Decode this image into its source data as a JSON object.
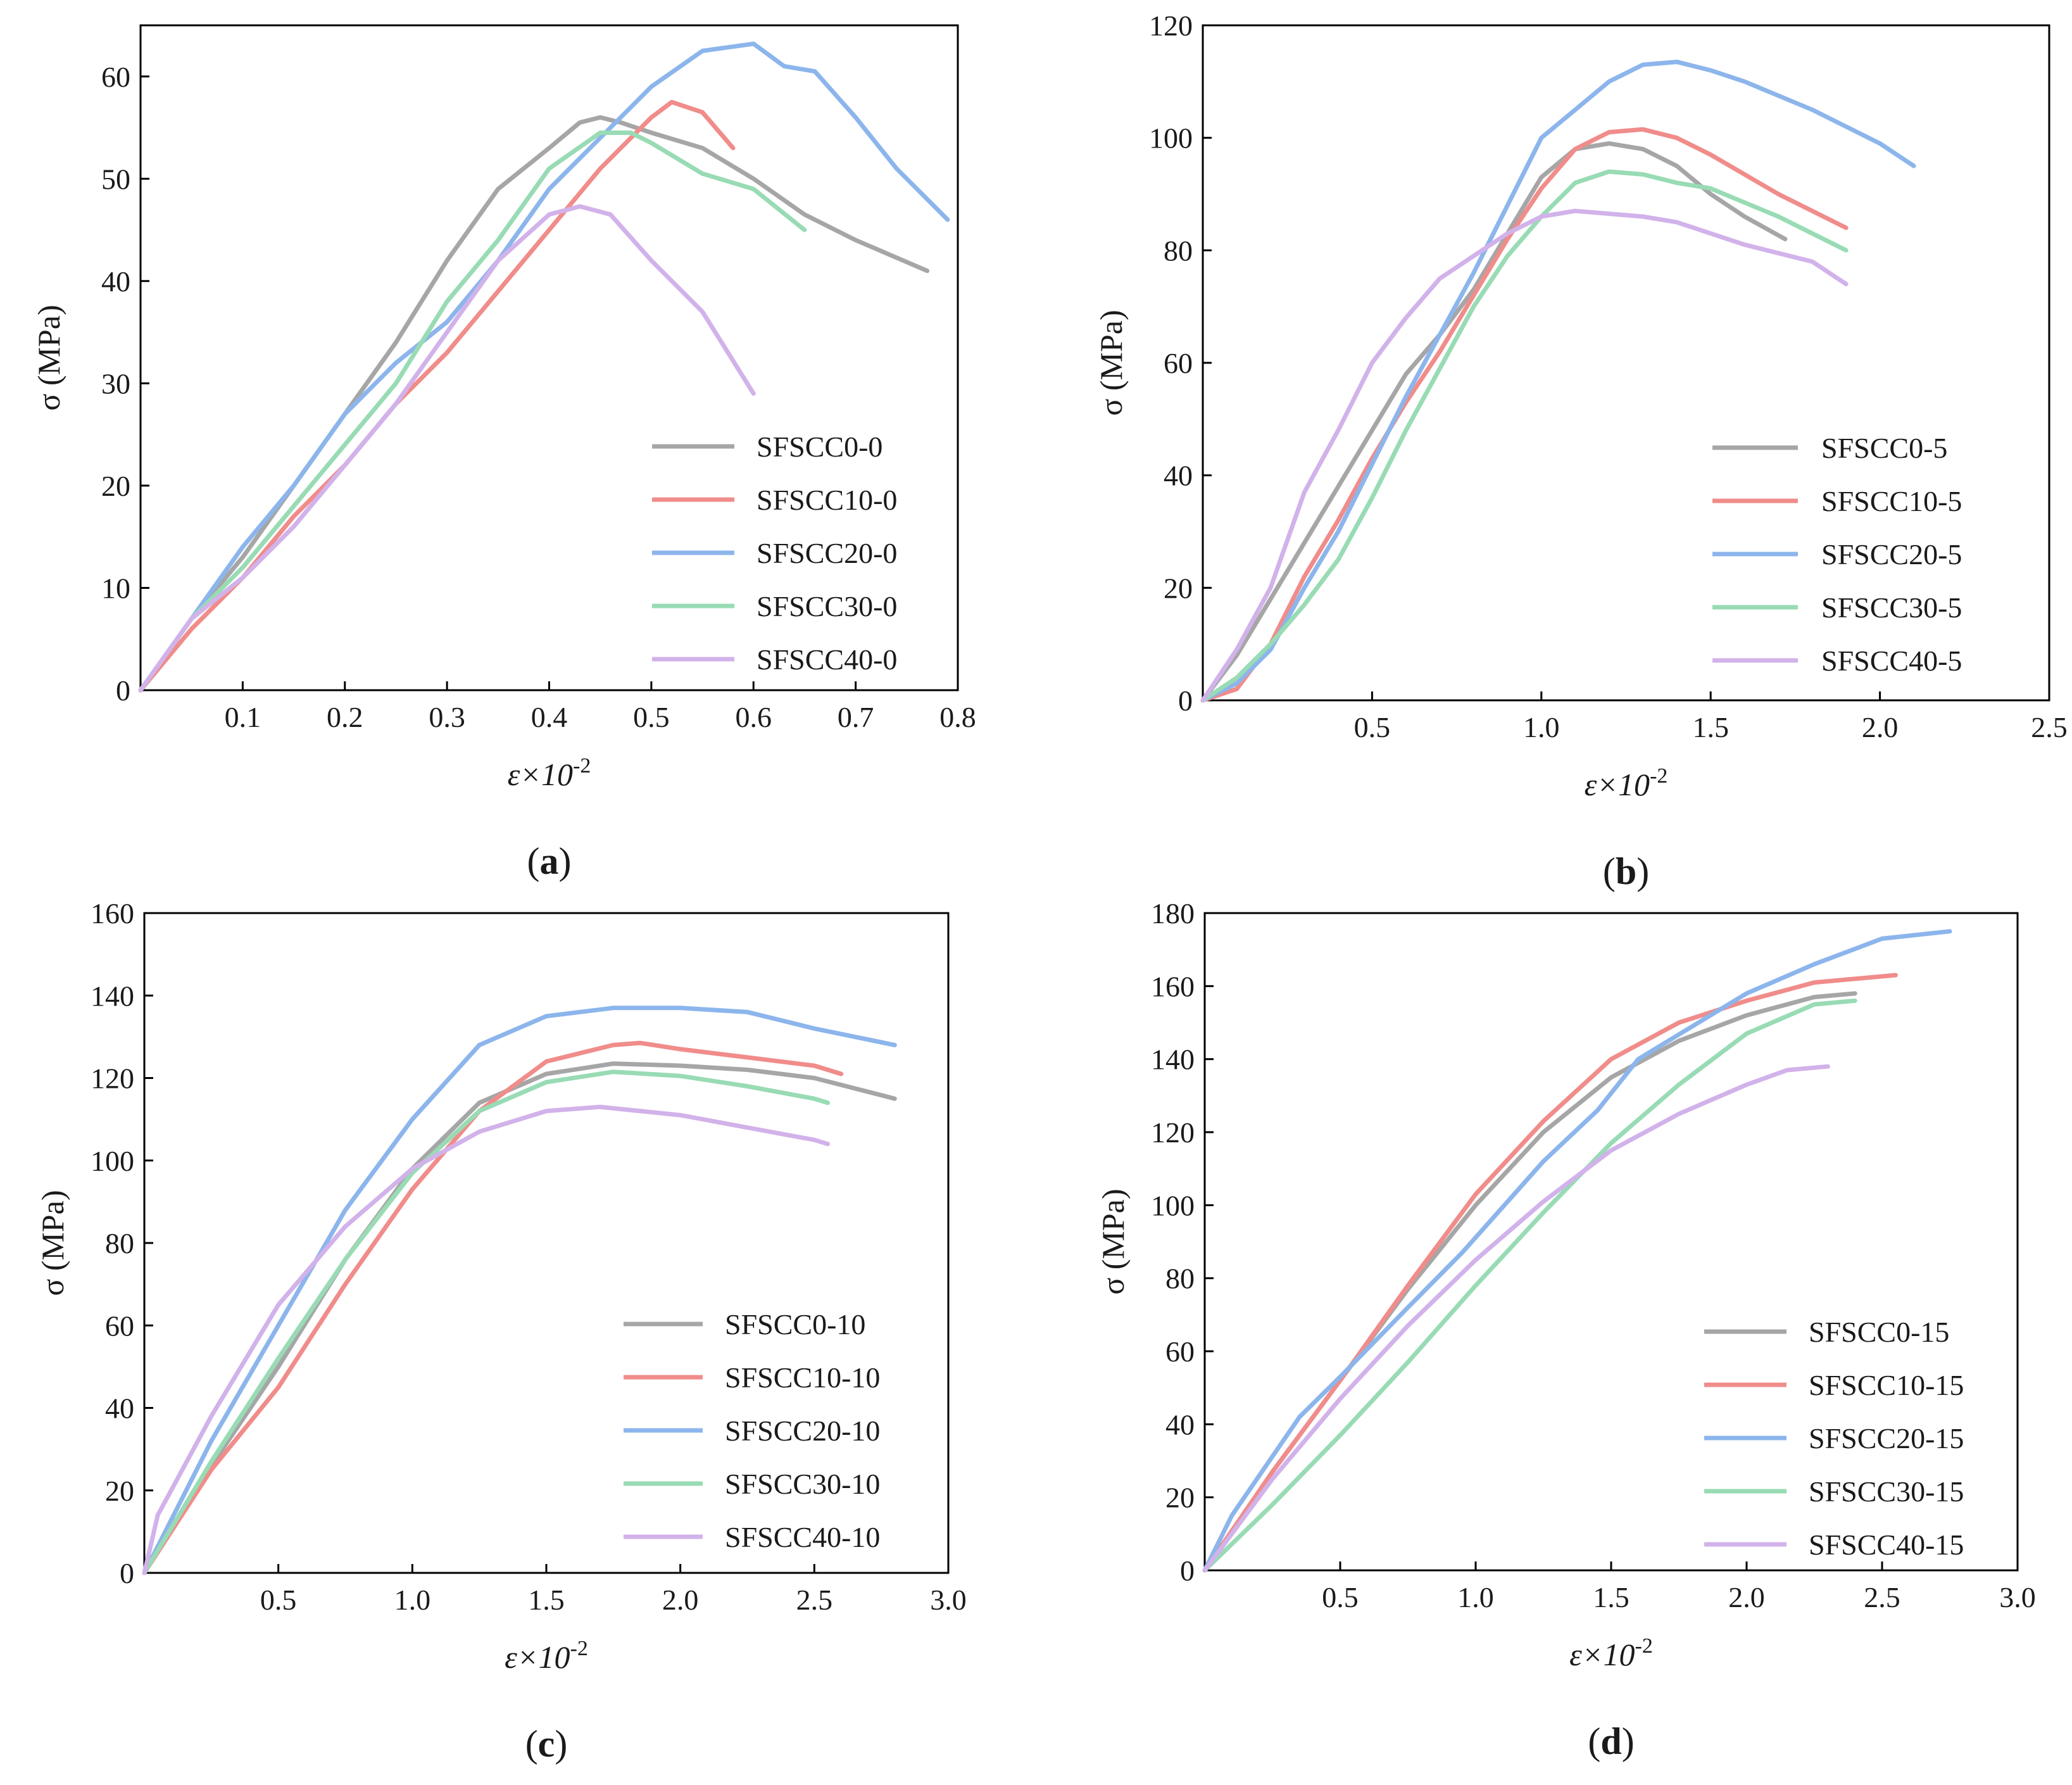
{
  "chart_data": [
    {
      "type": "line",
      "panel_label": "a",
      "xlabel": "ε×10",
      "xlabel_exp": "-2",
      "ylabel": "σ (MPa)",
      "xlim": [
        0,
        0.8
      ],
      "ylim": [
        0,
        65
      ],
      "xticks": [
        0.1,
        0.2,
        0.3,
        0.4,
        0.5,
        0.6,
        0.7,
        0.8
      ],
      "xtick_labels": [
        "0.1",
        "0.2",
        "0.3",
        "0.4",
        "0.5",
        "0.6",
        "0.7",
        "0.8"
      ],
      "yticks": [
        0,
        10,
        20,
        30,
        40,
        50,
        60
      ],
      "ytick_labels": [
        "0",
        "10",
        "20",
        "30",
        "40",
        "50",
        "60"
      ],
      "legend_position": "bottom-right",
      "series": [
        {
          "name": "SFSCC0-0",
          "color": "#a6a6a6",
          "x": [
            0,
            0.05,
            0.1,
            0.15,
            0.2,
            0.25,
            0.3,
            0.35,
            0.4,
            0.43,
            0.45,
            0.47,
            0.5,
            0.55,
            0.6,
            0.65,
            0.7,
            0.77
          ],
          "y": [
            0,
            7,
            13,
            20,
            27,
            34,
            42,
            49,
            53,
            55.5,
            56,
            55.5,
            54.5,
            53,
            50,
            46.5,
            44,
            41
          ]
        },
        {
          "name": "SFSCC10-0",
          "color": "#f08c8a",
          "x": [
            0,
            0.05,
            0.1,
            0.15,
            0.2,
            0.25,
            0.3,
            0.35,
            0.4,
            0.45,
            0.5,
            0.52,
            0.55,
            0.58
          ],
          "y": [
            0,
            6,
            11,
            17,
            22,
            28,
            33,
            39,
            45,
            51,
            56,
            57.5,
            56.5,
            53
          ]
        },
        {
          "name": "SFSCC20-0",
          "color": "#8cb5ec",
          "x": [
            0,
            0.05,
            0.1,
            0.15,
            0.2,
            0.25,
            0.3,
            0.35,
            0.4,
            0.45,
            0.5,
            0.55,
            0.6,
            0.63,
            0.66,
            0.7,
            0.74,
            0.79
          ],
          "y": [
            0,
            7,
            14,
            20,
            27,
            32,
            36,
            42,
            49,
            54,
            59,
            62.5,
            63.2,
            61,
            60.5,
            56,
            51,
            46
          ]
        },
        {
          "name": "SFSCC30-0",
          "color": "#98dbb4",
          "x": [
            0,
            0.05,
            0.1,
            0.15,
            0.2,
            0.25,
            0.3,
            0.35,
            0.4,
            0.45,
            0.48,
            0.5,
            0.55,
            0.6,
            0.65
          ],
          "y": [
            0,
            7,
            12,
            18,
            24,
            30,
            38,
            44,
            51,
            54.5,
            54.5,
            53.5,
            50.5,
            49,
            45
          ]
        },
        {
          "name": "SFSCC40-0",
          "color": "#d2b2ea",
          "x": [
            0,
            0.05,
            0.1,
            0.15,
            0.2,
            0.25,
            0.3,
            0.35,
            0.4,
            0.43,
            0.46,
            0.5,
            0.55,
            0.6
          ],
          "y": [
            0,
            7,
            11,
            16,
            22,
            28,
            35,
            42,
            46.5,
            47.3,
            46.5,
            42,
            37,
            29
          ]
        }
      ]
    },
    {
      "type": "line",
      "panel_label": "b",
      "xlabel": "ε×10",
      "xlabel_exp": "-2",
      "ylabel": "σ (MPa)",
      "xlim": [
        0,
        2.5
      ],
      "ylim": [
        0,
        120
      ],
      "xticks": [
        0.5,
        1.0,
        1.5,
        2.0,
        2.5
      ],
      "xtick_labels": [
        "0.5",
        "1.0",
        "1.5",
        "2.0",
        "2.5"
      ],
      "yticks": [
        0,
        20,
        40,
        60,
        80,
        100,
        120
      ],
      "ytick_labels": [
        "0",
        "20",
        "40",
        "60",
        "80",
        "100",
        "120"
      ],
      "legend_position": "bottom-right",
      "series": [
        {
          "name": "SFSCC0-5",
          "color": "#a6a6a6",
          "x": [
            0,
            0.1,
            0.2,
            0.3,
            0.4,
            0.5,
            0.6,
            0.7,
            0.8,
            0.9,
            1.0,
            1.1,
            1.2,
            1.3,
            1.4,
            1.5,
            1.6,
            1.72
          ],
          "y": [
            0,
            8,
            18,
            28,
            38,
            48,
            58,
            65,
            73,
            83,
            93,
            98,
            99,
            98,
            95,
            90,
            86,
            82
          ]
        },
        {
          "name": "SFSCC10-5",
          "color": "#f08c8a",
          "x": [
            0,
            0.1,
            0.2,
            0.3,
            0.4,
            0.5,
            0.6,
            0.7,
            0.8,
            0.9,
            1.0,
            1.1,
            1.2,
            1.3,
            1.4,
            1.5,
            1.7,
            1.9
          ],
          "y": [
            0,
            2,
            10,
            22,
            32,
            43,
            53,
            62,
            72,
            82,
            91,
            98,
            101,
            101.5,
            100,
            97,
            90,
            84
          ]
        },
        {
          "name": "SFSCC20-5",
          "color": "#8cb5ec",
          "x": [
            0,
            0.1,
            0.2,
            0.3,
            0.4,
            0.5,
            0.6,
            0.7,
            0.8,
            0.9,
            1.0,
            1.1,
            1.2,
            1.3,
            1.4,
            1.5,
            1.6,
            1.8,
            2.0,
            2.1
          ],
          "y": [
            0,
            3,
            9,
            20,
            30,
            42,
            54,
            65,
            76,
            88,
            100,
            105,
            110,
            113,
            113.5,
            112,
            110,
            105,
            99,
            95
          ]
        },
        {
          "name": "SFSCC30-5",
          "color": "#98dbb4",
          "x": [
            0,
            0.1,
            0.2,
            0.3,
            0.4,
            0.5,
            0.6,
            0.7,
            0.8,
            0.9,
            1.0,
            1.1,
            1.2,
            1.3,
            1.4,
            1.5,
            1.7,
            1.9
          ],
          "y": [
            0,
            4,
            10,
            17,
            25,
            36,
            48,
            59,
            70,
            79,
            86,
            92,
            94,
            93.5,
            92,
            91,
            86,
            80
          ]
        },
        {
          "name": "SFSCC40-5",
          "color": "#d2b2ea",
          "x": [
            0,
            0.1,
            0.2,
            0.3,
            0.4,
            0.5,
            0.6,
            0.7,
            0.8,
            0.9,
            1.0,
            1.1,
            1.2,
            1.3,
            1.4,
            1.5,
            1.6,
            1.8,
            1.9
          ],
          "y": [
            0,
            9,
            20,
            37,
            48,
            60,
            68,
            75,
            79,
            83,
            86,
            87,
            86.5,
            86,
            85,
            83,
            81,
            78,
            74
          ]
        }
      ]
    },
    {
      "type": "line",
      "panel_label": "c",
      "xlabel": "ε×10",
      "xlabel_exp": "-2",
      "ylabel": "σ (MPa)",
      "xlim": [
        0,
        3.0
      ],
      "ylim": [
        0,
        160
      ],
      "xticks": [
        0.5,
        1.0,
        1.5,
        2.0,
        2.5,
        3.0
      ],
      "xtick_labels": [
        "0.5",
        "1.0",
        "1.5",
        "2.0",
        "2.5",
        "3.0"
      ],
      "yticks": [
        0,
        20,
        40,
        60,
        80,
        100,
        120,
        140,
        160
      ],
      "ytick_labels": [
        "0",
        "20",
        "40",
        "60",
        "80",
        "100",
        "120",
        "140",
        "160"
      ],
      "legend_position": "bottom-right",
      "series": [
        {
          "name": "SFSCC0-10",
          "color": "#a6a6a6",
          "x": [
            0,
            0.25,
            0.5,
            0.75,
            1.0,
            1.25,
            1.5,
            1.75,
            2.0,
            2.25,
            2.5,
            2.8
          ],
          "y": [
            0,
            26,
            50,
            76,
            98,
            114,
            121,
            123.5,
            123,
            122,
            120,
            115
          ]
        },
        {
          "name": "SFSCC10-10",
          "color": "#f08c8a",
          "x": [
            0,
            0.25,
            0.5,
            0.75,
            1.0,
            1.25,
            1.5,
            1.75,
            1.85,
            2.0,
            2.25,
            2.5,
            2.6
          ],
          "y": [
            0,
            25,
            45,
            70,
            93,
            112,
            124,
            128,
            128.5,
            127,
            125,
            123,
            121
          ]
        },
        {
          "name": "SFSCC20-10",
          "color": "#8cb5ec",
          "x": [
            0,
            0.25,
            0.5,
            0.75,
            1.0,
            1.25,
            1.5,
            1.75,
            2.0,
            2.25,
            2.5,
            2.8
          ],
          "y": [
            0,
            32,
            60,
            88,
            110,
            128,
            135,
            137,
            137,
            136,
            132,
            128
          ]
        },
        {
          "name": "SFSCC30-10",
          "color": "#98dbb4",
          "x": [
            0,
            0.25,
            0.5,
            0.75,
            1.0,
            1.25,
            1.5,
            1.75,
            2.0,
            2.25,
            2.5,
            2.55
          ],
          "y": [
            0,
            27,
            52,
            76,
            97,
            112,
            119,
            121.5,
            120.5,
            118,
            115,
            114
          ]
        },
        {
          "name": "SFSCC40-10",
          "color": "#d2b2ea",
          "x": [
            0,
            0.05,
            0.25,
            0.5,
            0.75,
            1.0,
            1.25,
            1.5,
            1.7,
            2.0,
            2.25,
            2.5,
            2.55
          ],
          "y": [
            0,
            14,
            38,
            65,
            84,
            98,
            107,
            112,
            113,
            111,
            108,
            105,
            104
          ]
        }
      ]
    },
    {
      "type": "line",
      "panel_label": "d",
      "xlabel": "ε×10",
      "xlabel_exp": "-2",
      "ylabel": "σ (MPa)",
      "xlim": [
        0,
        3.0
      ],
      "ylim": [
        0,
        180
      ],
      "xticks": [
        0.5,
        1.0,
        1.5,
        2.0,
        2.5,
        3.0
      ],
      "xtick_labels": [
        "0.5",
        "1.0",
        "1.5",
        "2.0",
        "2.5",
        "3.0"
      ],
      "yticks": [
        0,
        20,
        40,
        60,
        80,
        100,
        120,
        140,
        160,
        180
      ],
      "ytick_labels": [
        "0",
        "20",
        "40",
        "60",
        "80",
        "100",
        "120",
        "140",
        "160",
        "180"
      ],
      "legend_position": "bottom-right",
      "series": [
        {
          "name": "SFSCC0-15",
          "color": "#a6a6a6",
          "x": [
            0,
            0.25,
            0.5,
            0.75,
            1.0,
            1.25,
            1.5,
            1.75,
            2.0,
            2.25,
            2.4
          ],
          "y": [
            0,
            27,
            52,
            77,
            100,
            120,
            135,
            145,
            152,
            157,
            158
          ]
        },
        {
          "name": "SFSCC10-15",
          "color": "#f08c8a",
          "x": [
            0,
            0.25,
            0.5,
            0.75,
            1.0,
            1.25,
            1.5,
            1.75,
            2.0,
            2.25,
            2.55
          ],
          "y": [
            0,
            27,
            52,
            78,
            103,
            123,
            140,
            150,
            156,
            161,
            163
          ]
        },
        {
          "name": "SFSCC20-15",
          "color": "#8cb5ec",
          "x": [
            0,
            0.1,
            0.35,
            0.5,
            0.75,
            0.95,
            1.25,
            1.45,
            1.6,
            2.0,
            2.25,
            2.5,
            2.75
          ],
          "y": [
            0,
            15,
            42,
            53,
            72,
            87,
            112,
            126,
            140,
            158,
            166,
            173,
            175
          ]
        },
        {
          "name": "SFSCC30-15",
          "color": "#98dbb4",
          "x": [
            0,
            0.25,
            0.5,
            0.75,
            1.0,
            1.25,
            1.5,
            1.75,
            2.0,
            2.25,
            2.4
          ],
          "y": [
            0,
            18,
            37,
            57,
            78,
            98,
            117,
            133,
            147,
            155,
            156
          ]
        },
        {
          "name": "SFSCC40-15",
          "color": "#d2b2ea",
          "x": [
            0,
            0.25,
            0.5,
            0.75,
            1.0,
            1.25,
            1.5,
            1.75,
            2.0,
            2.15,
            2.3
          ],
          "y": [
            0,
            25,
            47,
            67,
            85,
            101,
            115,
            125,
            133,
            137,
            138
          ]
        }
      ]
    }
  ]
}
